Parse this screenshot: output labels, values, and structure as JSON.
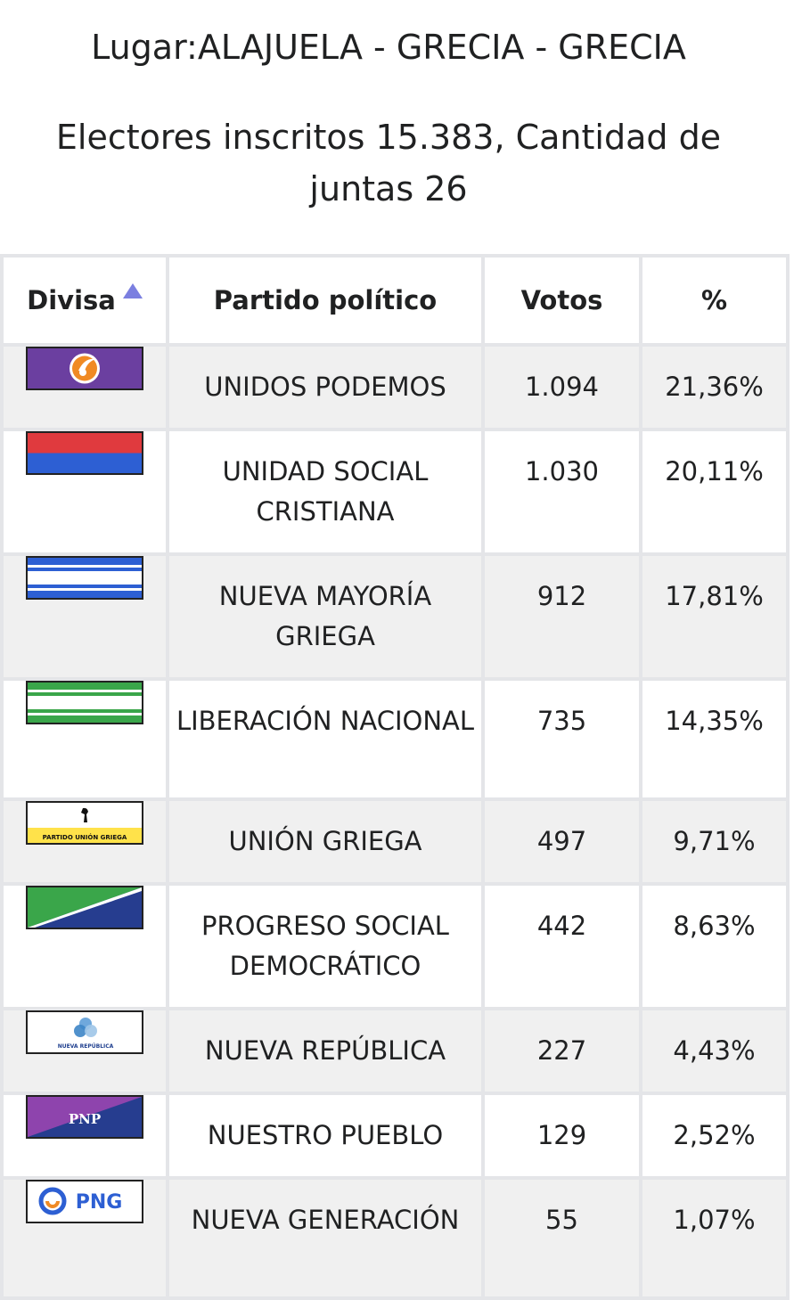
{
  "location_line": "Lugar:ALAJUELA - GRECIA - GRECIA",
  "voters_line": "Electores inscritos 15.383, Cantidad de juntas 26",
  "table": {
    "headers": {
      "flag": "Divisa",
      "party": "Partido político",
      "votes": "Votos",
      "pct": "%"
    },
    "rows": [
      {
        "party": "UNIDOS PODEMOS",
        "votes": "1.094",
        "pct": "21,36%",
        "flag_icon": "unidos-podemos-flag-icon"
      },
      {
        "party": "UNIDAD SOCIAL CRISTIANA",
        "votes": "1.030",
        "pct": "20,11%",
        "flag_icon": "pusc-flag-icon"
      },
      {
        "party": "NUEVA MAYORÍA GRIEGA",
        "votes": "912",
        "pct": "17,81%",
        "flag_icon": "nueva-mayoria-griega-flag-icon"
      },
      {
        "party": "LIBERACIÓN NACIONAL",
        "votes": "735",
        "pct": "14,35%",
        "flag_icon": "pln-flag-icon"
      },
      {
        "party": "UNIÓN GRIEGA",
        "votes": "497",
        "pct": "9,71%",
        "flag_icon": "union-griega-flag-icon",
        "flag_text": "PARTIDO UNIÓN GRIEGA"
      },
      {
        "party": "PROGRESO SOCIAL DEMOCRÁTICO",
        "votes": "442",
        "pct": "8,63%",
        "flag_icon": "psd-flag-icon"
      },
      {
        "party": "NUEVA REPÚBLICA",
        "votes": "227",
        "pct": "4,43%",
        "flag_icon": "nueva-republica-flag-icon",
        "flag_text": "NUEVA REPÚBLICA"
      },
      {
        "party": "NUESTRO PUEBLO",
        "votes": "129",
        "pct": "2,52%",
        "flag_icon": "pnp-flag-icon",
        "flag_text": "PNP"
      },
      {
        "party": "NUEVA GENERACIÓN",
        "votes": "55",
        "pct": "1,07%",
        "flag_icon": "png-flag-icon",
        "flag_text": "PNG"
      }
    ]
  },
  "colors": {
    "purple": "#6b3fa0",
    "red": "#e03a3e",
    "blue": "#2d5fd3",
    "green": "#3aa64a",
    "yellow": "#ffe24a",
    "navy": "#263d8f",
    "sort_arrow": "#7b7fe0"
  }
}
